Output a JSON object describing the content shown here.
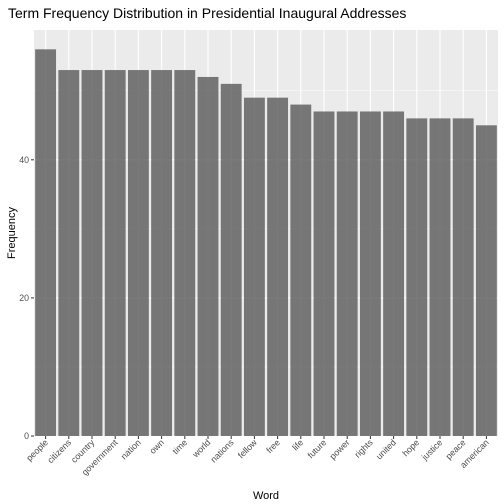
{
  "chart_data": {
    "type": "bar",
    "title": "Term Frequency Distribution in Presidential Inaugural Addresses",
    "xlabel": "Word",
    "ylabel": "Frequency",
    "categories": [
      "people",
      "citizens",
      "country",
      "government",
      "nation",
      "own",
      "time",
      "world",
      "nations",
      "fellow",
      "free",
      "life",
      "future",
      "power",
      "rights",
      "united",
      "hope",
      "justice",
      "peace",
      "american"
    ],
    "values": [
      56,
      53,
      53,
      53,
      53,
      53,
      53,
      52,
      51,
      49,
      49,
      48,
      47,
      47,
      47,
      47,
      46,
      46,
      46,
      45
    ],
    "ylim": [
      0,
      58.8
    ],
    "yticks": [
      0,
      20,
      40
    ],
    "grid": true,
    "colors": {
      "panel": "#ebebeb",
      "grid_major": "#ffffff",
      "bar": "#595959",
      "tick": "#333333"
    }
  }
}
